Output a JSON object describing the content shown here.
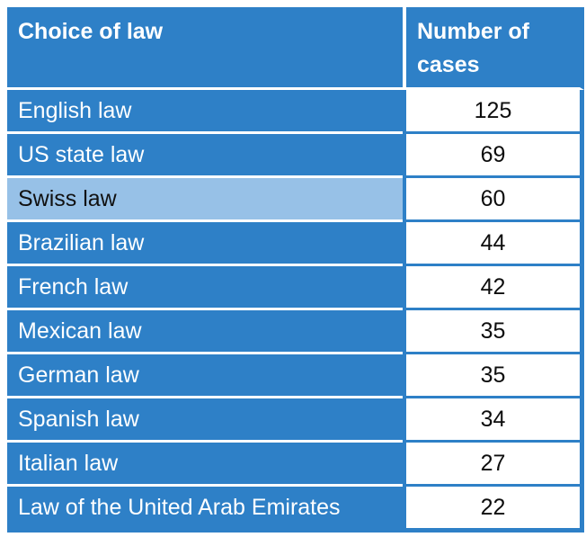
{
  "colors": {
    "primary_blue": "#2E80C7",
    "highlight_blue": "#97C1E7",
    "header_text": "#FFFFFF",
    "row_text": "#FFFFFF",
    "number_text": "#0D0D0D",
    "cell_background": "#FFFFFF"
  },
  "chart_data": {
    "type": "table",
    "columns": [
      "Choice of law",
      "Number of cases"
    ],
    "rows": [
      {
        "law": "English law",
        "cases": "125",
        "highlighted": false
      },
      {
        "law": "US state law",
        "cases": "69",
        "highlighted": false
      },
      {
        "law": "Swiss law",
        "cases": "60",
        "highlighted": true
      },
      {
        "law": "Brazilian law",
        "cases": "44",
        "highlighted": false
      },
      {
        "law": "French law",
        "cases": "42",
        "highlighted": false
      },
      {
        "law": "Mexican law",
        "cases": "35",
        "highlighted": false
      },
      {
        "law": "German law",
        "cases": "35",
        "highlighted": false
      },
      {
        "law": "Spanish law",
        "cases": "34",
        "highlighted": false
      },
      {
        "law": "Italian law",
        "cases": "27",
        "highlighted": false
      },
      {
        "law": "Law of the United Arab Emirates",
        "cases": "22",
        "highlighted": false
      }
    ]
  }
}
